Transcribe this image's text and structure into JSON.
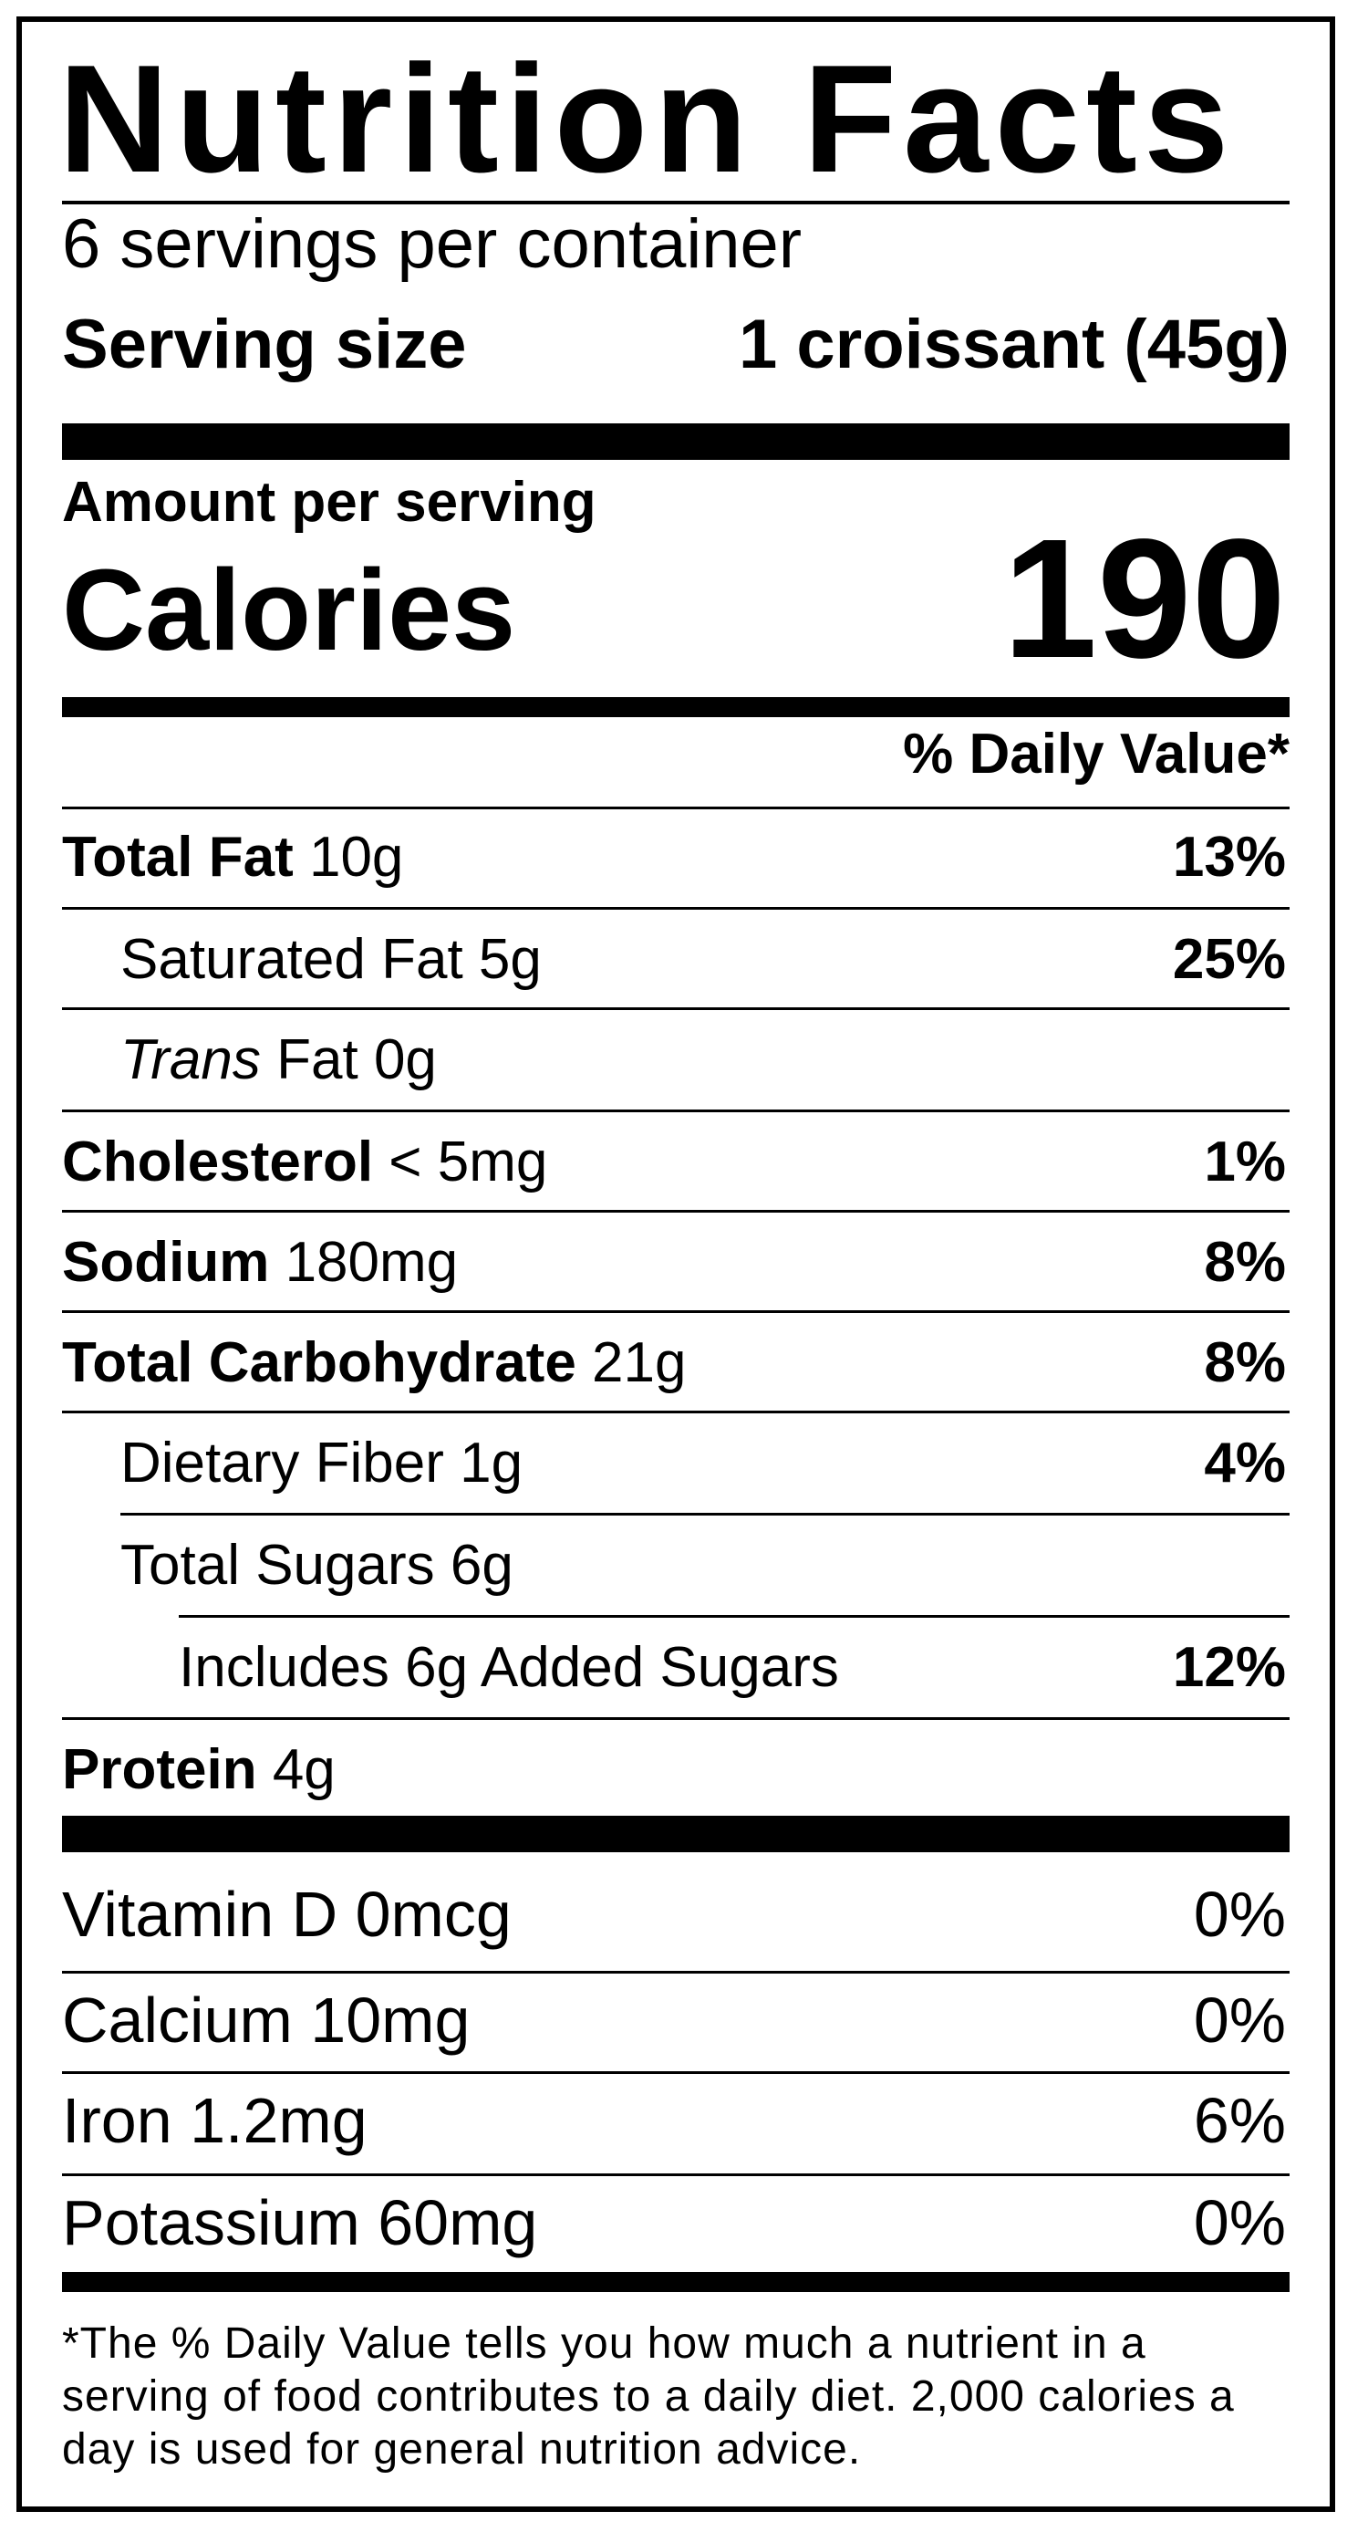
{
  "label": {
    "title": "Nutrition Facts",
    "servings_per_container": "6 servings per container",
    "serving_size_label": "Serving size",
    "serving_size_value": "1 croissant (45g)",
    "amount_per_serving": "Amount per serving",
    "calories_label": "Calories",
    "calories_value": "190",
    "daily_value_header": "% Daily Value*"
  },
  "nutrients": [
    {
      "name": "Total Fat",
      "amount": "10g",
      "dv": "13%"
    },
    {
      "name": "Saturated Fat",
      "amount": "5g",
      "dv": "25%"
    },
    {
      "name_italic": "Trans",
      "name": "Fat",
      "amount": "0g",
      "dv": ""
    },
    {
      "name": "Cholesterol",
      "amount": "< 5mg",
      "dv": "1%"
    },
    {
      "name": "Sodium",
      "amount": "180mg",
      "dv": "8%"
    },
    {
      "name": "Total Carbohydrate",
      "amount": "21g",
      "dv": "8%"
    },
    {
      "name": "Dietary Fiber",
      "amount": "1g",
      "dv": "4%"
    },
    {
      "name": "Total Sugars",
      "amount": "6g",
      "dv": ""
    },
    {
      "name": "Includes 6g Added Sugars",
      "amount": "",
      "dv": "12%"
    },
    {
      "name": "Protein",
      "amount": "4g",
      "dv": ""
    }
  ],
  "vitamins": [
    {
      "name": "Vitamin D",
      "amount": "0mcg",
      "dv": "0%"
    },
    {
      "name": "Calcium",
      "amount": "10mg",
      "dv": "0%"
    },
    {
      "name": "Iron",
      "amount": "1.2mg",
      "dv": "6%"
    },
    {
      "name": "Potassium",
      "amount": "60mg",
      "dv": "0%"
    }
  ],
  "footnote": "*The % Daily Value tells you how much a nutrient in a serving of food contributes to a daily diet. 2,000 calories a day is used for general nutrition advice."
}
